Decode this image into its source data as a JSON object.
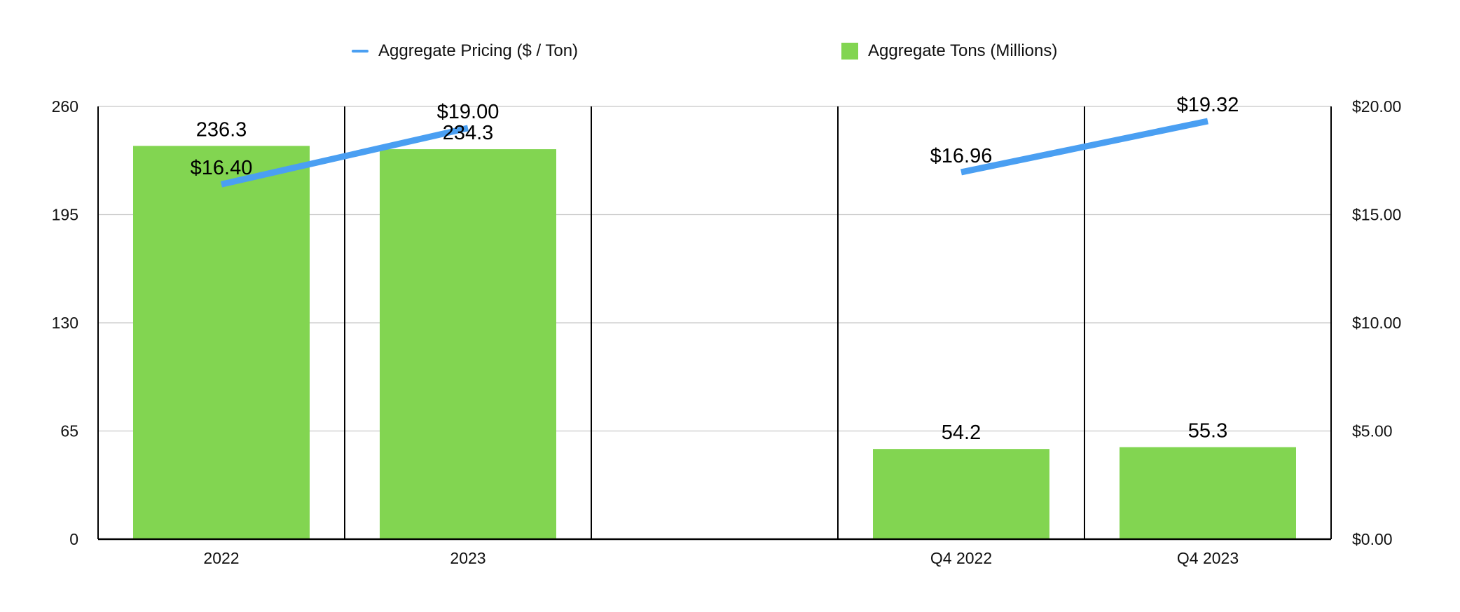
{
  "chart_data": {
    "type": "bar",
    "categories": [
      "2022",
      "2023",
      "",
      "Q4 2022",
      "Q4 2023"
    ],
    "series": [
      {
        "name": "Aggregate Tons (Millions)",
        "kind": "bar",
        "axis": "left",
        "color": "#82d551",
        "values": [
          236.3,
          234.3,
          null,
          54.2,
          55.3
        ],
        "labels": [
          "236.3",
          "234.3",
          "",
          "54.2",
          "55.3"
        ]
      },
      {
        "name": "Aggregate Pricing ($ / Ton)",
        "kind": "line",
        "axis": "right",
        "color": "#4a9ff2",
        "values": [
          16.4,
          19.0,
          null,
          16.96,
          19.32
        ],
        "labels": [
          "$16.40",
          "$19.00",
          "",
          "$16.96",
          "$19.32"
        ]
      }
    ],
    "y_left": {
      "min": 0,
      "max": 260,
      "ticks": [
        "0",
        "65",
        "130",
        "195",
        "260"
      ],
      "tick_values": [
        0,
        65,
        130,
        195,
        260
      ]
    },
    "y_right": {
      "min": 0,
      "max": 20,
      "ticks": [
        "$0.00",
        "$5.00",
        "$10.00",
        "$15.00",
        "$20.00"
      ],
      "tick_values": [
        0,
        5,
        10,
        15,
        20
      ]
    },
    "grid": true,
    "legend_position": "top",
    "title": "",
    "xlabel": "",
    "ylabel": ""
  },
  "legend": {
    "line_label": "Aggregate Pricing ($ / Ton)",
    "bar_label": "Aggregate Tons (Millions)",
    "line_color": "#4a9ff2",
    "bar_color": "#82d551"
  }
}
